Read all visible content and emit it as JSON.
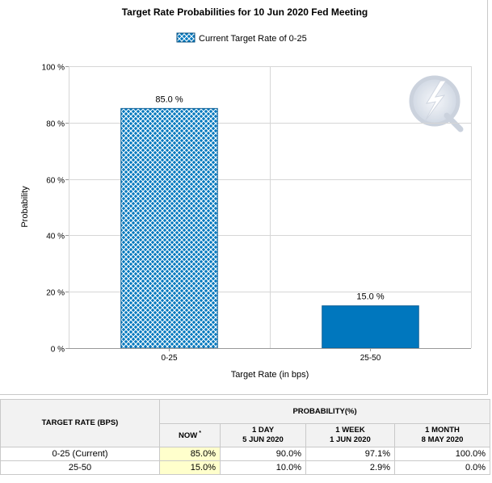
{
  "chart_data": {
    "type": "bar",
    "title": "Target Rate Probabilities for 10 Jun 2020 Fed Meeting",
    "legend": {
      "label": "Current Target Rate of 0-25",
      "placement": "top-center"
    },
    "categories": [
      "0-25",
      "25-50"
    ],
    "values": [
      85.0,
      15.0
    ],
    "value_labels": [
      "85.0 %",
      "15.0 %"
    ],
    "bar_styles": [
      "hatched",
      "solid"
    ],
    "xlabel": "Target Rate (in bps)",
    "ylabel": "Probability",
    "ylim": [
      0,
      100
    ],
    "yticks": [
      0,
      20,
      40,
      60,
      80,
      100
    ],
    "ytick_labels": [
      "0 %",
      "20 %",
      "40 %",
      "60 %",
      "80 %",
      "100 %"
    ],
    "grid": true,
    "colors": {
      "bar": "#0077be",
      "hatch": "#ffffff",
      "grid": "#d6d6d6"
    }
  },
  "table": {
    "target_rate_header": "TARGET RATE (BPS)",
    "probability_header": "PROBABILITY(%)",
    "columns": [
      {
        "line1": "NOW",
        "line2": "",
        "star": "*"
      },
      {
        "line1": "1 DAY",
        "line2": "5 JUN 2020",
        "star": ""
      },
      {
        "line1": "1 WEEK",
        "line2": "1 JUN 2020",
        "star": ""
      },
      {
        "line1": "1 MONTH",
        "line2": "8 MAY 2020",
        "star": ""
      }
    ],
    "rows": [
      {
        "label": "0-25 (Current)",
        "values": [
          "85.0%",
          "90.0%",
          "97.1%",
          "100.0%"
        ]
      },
      {
        "label": "25-50",
        "values": [
          "15.0%",
          "10.0%",
          "2.9%",
          "0.0%"
        ]
      }
    ],
    "now_highlight_color": "#ffffcc"
  }
}
